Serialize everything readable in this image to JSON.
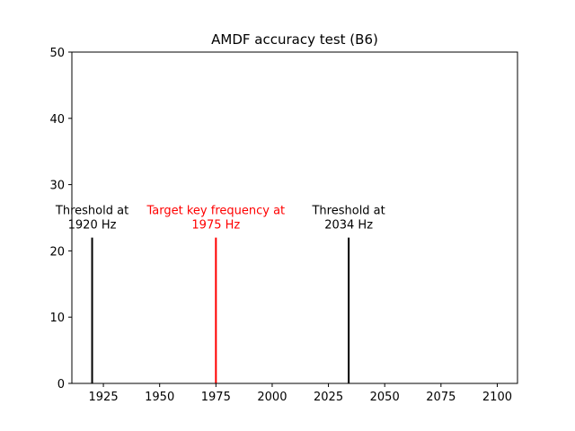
{
  "chart_data": {
    "type": "bar",
    "title": "AMDF accuracy test (B6)",
    "xlabel": "",
    "ylabel": "",
    "xlim": [
      1911,
      2109
    ],
    "ylim": [
      0,
      50
    ],
    "xticks": [
      1925,
      1950,
      1975,
      2000,
      2025,
      2050,
      2075,
      2100
    ],
    "yticks": [
      0,
      10,
      20,
      30,
      40,
      50
    ],
    "grid": false,
    "series": [
      {
        "color": "#000000",
        "points": [
          {
            "x": 1920,
            "y": 22,
            "label": [
              "Threshold at",
              "1920 Hz"
            ]
          },
          {
            "x": 2034,
            "y": 22,
            "label": [
              "Threshold at",
              "2034 Hz"
            ]
          }
        ]
      },
      {
        "color": "#ff0000",
        "points": [
          {
            "x": 1975,
            "y": 22,
            "label": [
              "Target key frequency at",
              "1975 Hz"
            ]
          }
        ]
      }
    ]
  }
}
